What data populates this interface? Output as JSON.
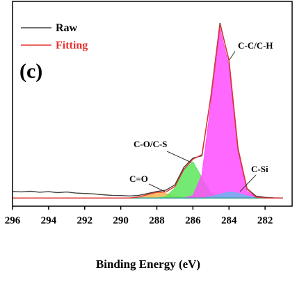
{
  "chart_data": {
    "type": "line",
    "panel_label": "(c)",
    "x_label": "Binding Energy (eV)",
    "xlim": [
      296,
      280.5
    ],
    "xticks": [
      296,
      294,
      292,
      290,
      288,
      286,
      284,
      282
    ],
    "ylim": [
      0,
      100
    ],
    "x": [
      296,
      295.5,
      295,
      294.5,
      294,
      293.5,
      293,
      292.5,
      292,
      291.5,
      291,
      290.5,
      290,
      289.5,
      289,
      288.5,
      288,
      287.5,
      287,
      286.5,
      286,
      285.5,
      285,
      284.5,
      284,
      283.5,
      283,
      282.5,
      282,
      281.5,
      281
    ],
    "series": [
      {
        "name": "Raw",
        "color": "#404040",
        "values": [
          7.2,
          7.0,
          7.3,
          6.8,
          7.1,
          6.6,
          6.9,
          6.4,
          6.2,
          6.0,
          5.6,
          5.3,
          5.2,
          5.0,
          5.3,
          6.2,
          7.2,
          7.8,
          10.4,
          19.0,
          23.5,
          24.6,
          54.0,
          89.5,
          71.0,
          27.9,
          8.6,
          4.9,
          4.3,
          4.1,
          4.0
        ]
      },
      {
        "name": "Fitting",
        "color": "#e8322f",
        "values": [
          4,
          4,
          4,
          4,
          4,
          4,
          4,
          4,
          4,
          4,
          4,
          4,
          4,
          4,
          4.5,
          5.7,
          6.8,
          6.9,
          9.6,
          18.0,
          22.9,
          25.2,
          53.3,
          88.8,
          71.5,
          28.4,
          8.3,
          4.4,
          4,
          4,
          4
        ]
      }
    ],
    "components": [
      {
        "label": "C=O",
        "color": "#f5b34f",
        "values": [
          4,
          4,
          4,
          4,
          4,
          4,
          4,
          4,
          4,
          4,
          4,
          4,
          4,
          4,
          4.5,
          5.7,
          6.8,
          6.2,
          4.9,
          4.2,
          4,
          4,
          4,
          4,
          4,
          4,
          4,
          4,
          4,
          4,
          4
        ]
      },
      {
        "label": "C-O/C-S",
        "color": "#5ce65c",
        "values": [
          4,
          4,
          4,
          4,
          4,
          4,
          4,
          4,
          4,
          4,
          4,
          4,
          4,
          4,
          4,
          4,
          4.0,
          4.7,
          8.7,
          17.8,
          21.7,
          13.9,
          6.4,
          4.3,
          4,
          4,
          4,
          4,
          4,
          4,
          4
        ]
      },
      {
        "label": "C-C/C-H",
        "color": "#ff4dff",
        "values": [
          4,
          4,
          4,
          4,
          4,
          4,
          4,
          4,
          4,
          4,
          4,
          4,
          4,
          4,
          4,
          4,
          4,
          4,
          4,
          4,
          5.2,
          15.3,
          50.3,
          86.7,
          68.5,
          26.0,
          7.3,
          4.2,
          4,
          4,
          4
        ]
      },
      {
        "label": "C-Si",
        "color": "#6fb3f0",
        "values": [
          4,
          4,
          4,
          4,
          4,
          4,
          4,
          4,
          4,
          4,
          4,
          4,
          4,
          4,
          4,
          4,
          4,
          4,
          4,
          4,
          4,
          4,
          4.6,
          5.8,
          7.0,
          6.4,
          5.0,
          4.2,
          4,
          4,
          4
        ]
      }
    ],
    "background": {
      "color": "#2a9d8f",
      "values": [
        4,
        4,
        4,
        4,
        4,
        4,
        4,
        4,
        4,
        4,
        4,
        4,
        4,
        4,
        4,
        4,
        4,
        4,
        4,
        4,
        4,
        4,
        4,
        4,
        4,
        4,
        4,
        4,
        4,
        4,
        4
      ]
    }
  }
}
